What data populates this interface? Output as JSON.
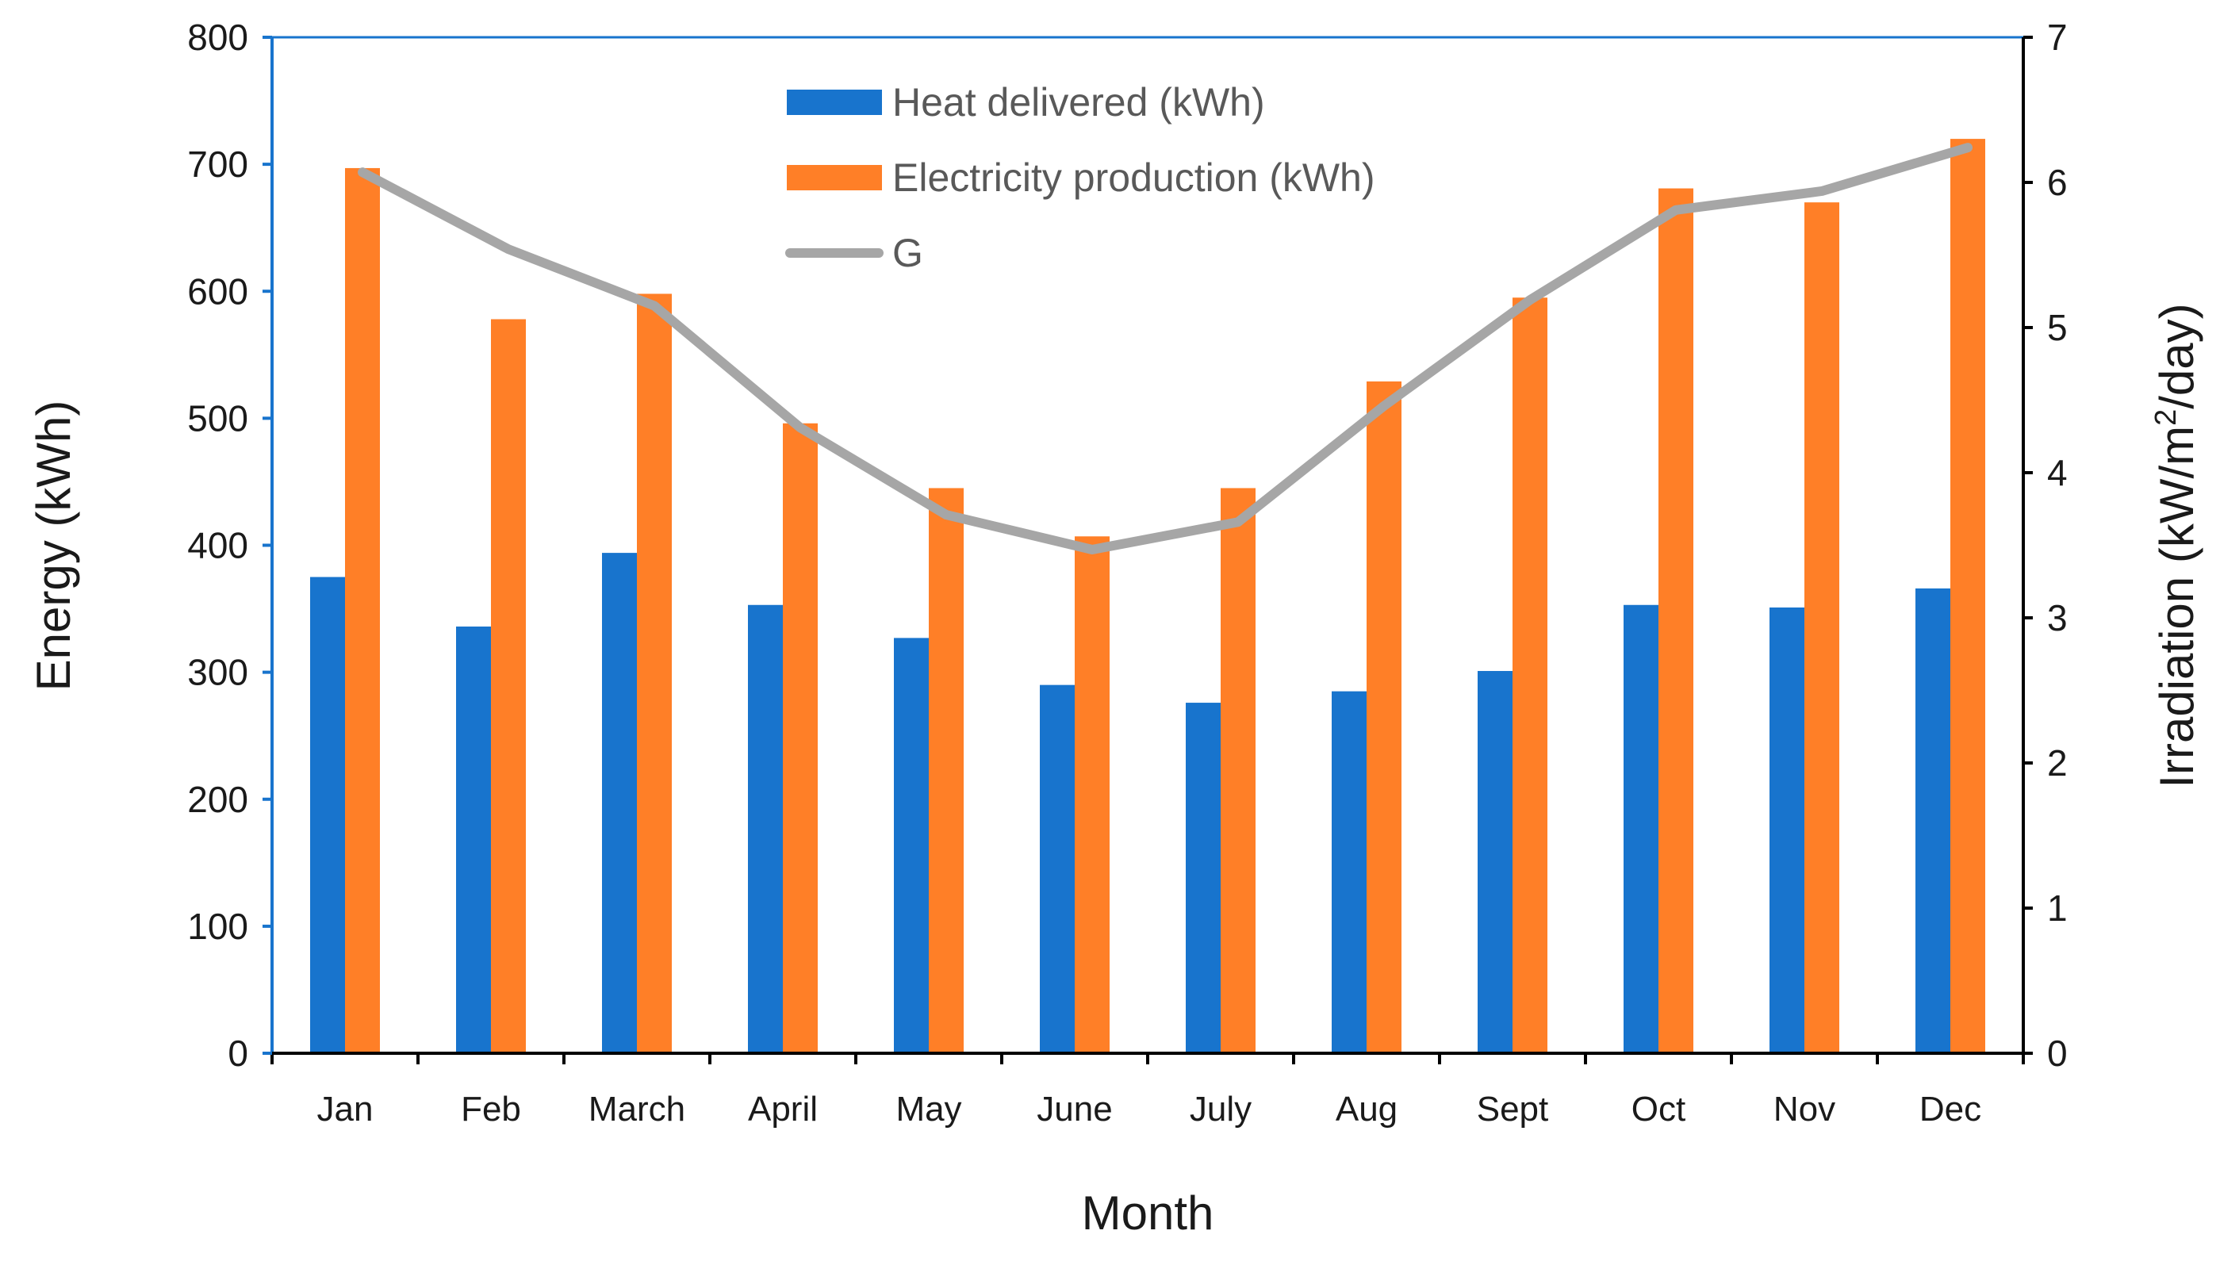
{
  "chart_data": {
    "type": "bar",
    "title": "",
    "xlabel": "Month",
    "ylabel": "Energy (kWh)",
    "y2label_parts": [
      "Irradiation (kW/m",
      "2",
      "/day)"
    ],
    "ylim": [
      0,
      800
    ],
    "yticks": [
      0,
      100,
      200,
      300,
      400,
      500,
      600,
      700,
      800
    ],
    "y2lim": [
      0,
      7
    ],
    "y2ticks": [
      0,
      1,
      2,
      3,
      4,
      5,
      6,
      7
    ],
    "grid": false,
    "legend_position": "top-center",
    "categories": [
      "Jan",
      "Feb",
      "March",
      "April",
      "May",
      "June",
      "July",
      "Aug",
      "Sept",
      "Oct",
      "Nov",
      "Dec"
    ],
    "series": [
      {
        "name": "Heat delivered (kWh)",
        "type": "bar",
        "axis": "left",
        "color": "#1874CD",
        "values": [
          375,
          336,
          394,
          353,
          327,
          290,
          276,
          285,
          301,
          353,
          351,
          366
        ]
      },
      {
        "name": "Electricity production (kWh)",
        "type": "bar",
        "axis": "left",
        "color": "#FF7F27",
        "values": [
          697,
          578,
          598,
          496,
          445,
          407,
          445,
          529,
          595,
          681,
          670,
          720
        ]
      },
      {
        "name": "G",
        "type": "line",
        "axis": "right",
        "color": "#A6A6A6",
        "values": [
          6.07,
          5.54,
          5.15,
          4.31,
          3.71,
          3.47,
          3.66,
          4.46,
          5.19,
          5.81,
          5.94,
          6.24
        ]
      }
    ]
  }
}
